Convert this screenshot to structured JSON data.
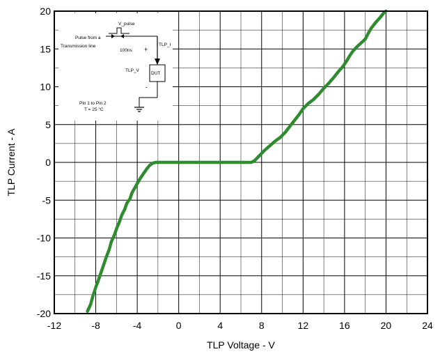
{
  "chart_data": {
    "type": "line",
    "title": "",
    "xlabel": "TLP Voltage - V",
    "ylabel": "TLP Current - A",
    "xlim": [
      -12,
      24
    ],
    "ylim": [
      -20,
      20
    ],
    "x_ticks": [
      -12,
      -8,
      -4,
      0,
      4,
      8,
      12,
      16,
      20,
      24
    ],
    "y_ticks": [
      -20,
      -15,
      -10,
      -5,
      0,
      5,
      10,
      15,
      20
    ],
    "x_tick_labels": [
      "-12",
      "-8",
      "-4",
      "0",
      "4",
      "8",
      "12",
      "16",
      "20",
      "24"
    ],
    "y_tick_labels": [
      "-20",
      "-15",
      "-10",
      "-5",
      "0",
      "5",
      "10",
      "15",
      "20"
    ],
    "grid": true,
    "minor_grid": true,
    "series": [
      {
        "color": "#2e8b2e",
        "x": [
          -8.8,
          -8.5,
          -8.3,
          -8.0,
          -7.8,
          -7.5,
          -7.3,
          -7.0,
          -6.7,
          -6.5,
          -6.2,
          -6.0,
          -5.7,
          -5.5,
          -5.2,
          -5.0,
          -4.7,
          -4.5,
          -4.2,
          -4.0,
          -3.7,
          -3.4,
          -3.1,
          -2.8,
          -2.5,
          -2.2,
          -1.9,
          -1.6,
          -1.3,
          -1.0,
          -0.5,
          0.0,
          1.0,
          2.0,
          3.0,
          4.0,
          5.0,
          6.0,
          7.0,
          7.3,
          7.8,
          8.3,
          8.8,
          9.3,
          9.8,
          10.3,
          10.8,
          11.2,
          11.6,
          12.0,
          12.5,
          13.0,
          13.5,
          14.0,
          14.5,
          15.0,
          15.4,
          15.8,
          16.2,
          16.5,
          16.8,
          17.2,
          17.6,
          18.0,
          18.3,
          18.6,
          19.0,
          19.4,
          19.8,
          20.0
        ],
        "y": [
          -19.7,
          -18.8,
          -17.8,
          -16.5,
          -15.8,
          -14.6,
          -13.8,
          -12.6,
          -11.5,
          -10.5,
          -9.6,
          -8.8,
          -7.8,
          -7.0,
          -6.2,
          -5.4,
          -4.8,
          -4.0,
          -3.3,
          -2.8,
          -2.1,
          -1.5,
          -0.9,
          -0.4,
          -0.1,
          0.0,
          0.0,
          0.0,
          0.0,
          0.0,
          0.0,
          0.0,
          0.0,
          0.0,
          0.0,
          0.0,
          0.0,
          0.0,
          0.0,
          0.2,
          0.9,
          1.6,
          2.2,
          2.8,
          3.3,
          4.0,
          4.9,
          5.6,
          6.3,
          7.1,
          7.8,
          8.3,
          9.0,
          9.8,
          10.5,
          11.3,
          12.0,
          12.6,
          13.4,
          14.1,
          14.7,
          15.3,
          15.8,
          16.3,
          17.1,
          17.8,
          18.5,
          19.1,
          19.8,
          20.0
        ]
      }
    ],
    "inset": {
      "v_pulse": "V_pulse",
      "source_line1": "Pulse from  a",
      "source_line2": "Transmission   line",
      "pulse_width": "100ns",
      "plus": "+",
      "minus": "-",
      "tlp_i": "TLP_I",
      "tlp_v": "TLP_V",
      "dut": "DUT",
      "pin_text": "Pin 1  to Pin 2",
      "temp_text": "T = 25 °C"
    }
  }
}
